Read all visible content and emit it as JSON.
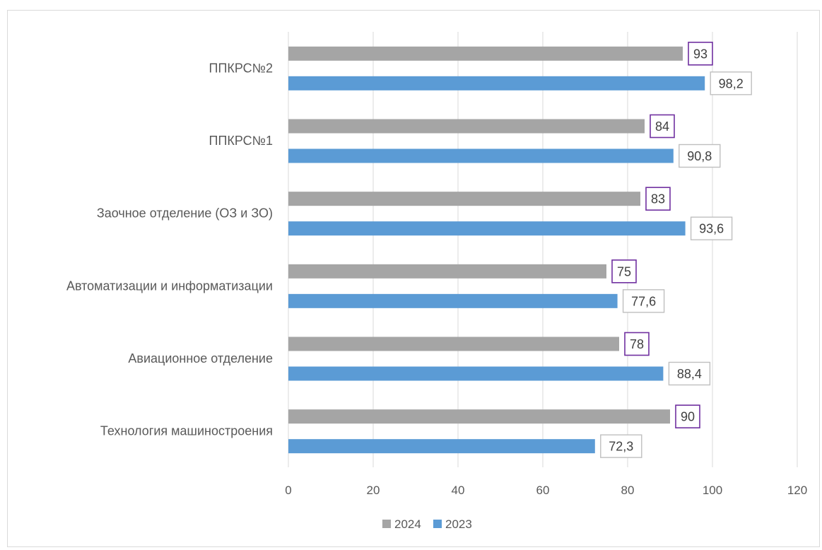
{
  "chart_data": {
    "type": "bar",
    "orientation": "horizontal",
    "categories": [
      "ППКРС№2",
      "ППКРС№1",
      "Заочное отделение (ОЗ и ЗО)",
      "Автоматизации и информатизации",
      "Авиационное отделение",
      "Технология машиностроения"
    ],
    "series": [
      {
        "name": "2024",
        "color": "#a5a5a5",
        "label_border": "#7030a0",
        "values": [
          93,
          84,
          83,
          75,
          78,
          90
        ],
        "labels": [
          "93",
          "84",
          "83",
          "75",
          "78",
          "90"
        ]
      },
      {
        "name": "2023",
        "color": "#5b9bd5",
        "label_border": "#bfbfbf",
        "values": [
          98.2,
          90.8,
          93.6,
          77.6,
          88.4,
          72.3
        ],
        "labels": [
          "98,2",
          "90,8",
          "93,6",
          "77,6",
          "88,4",
          "72,3"
        ]
      }
    ],
    "xlim": [
      0,
      120
    ],
    "xticks": [
      "0",
      "20",
      "40",
      "60",
      "80",
      "100",
      "120"
    ],
    "grid": true,
    "legend_position": "bottom"
  }
}
